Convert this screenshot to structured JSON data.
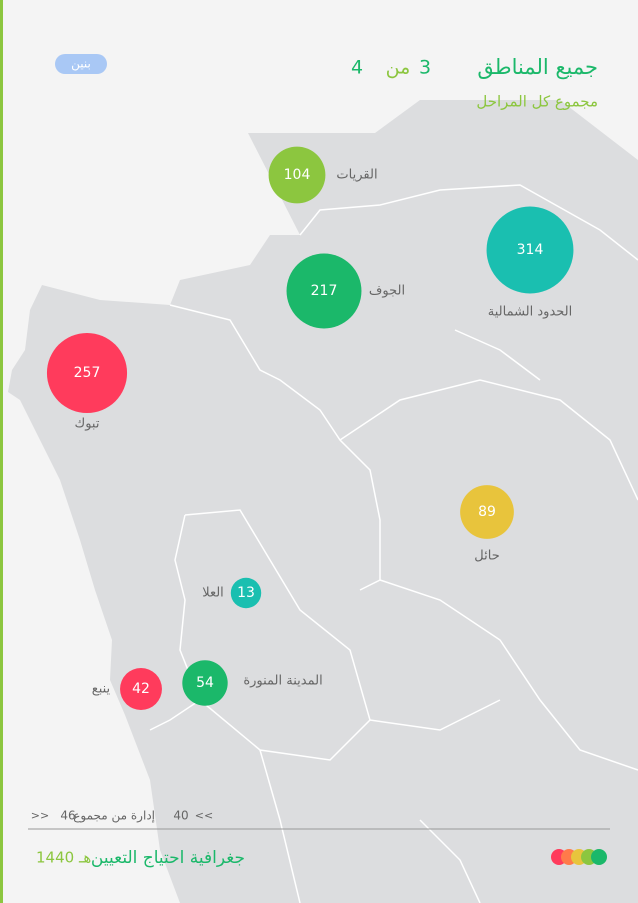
{
  "header": {
    "title": "جميع المناطق",
    "current": "3",
    "of": "من",
    "total": "4",
    "subtitle": "مجموع كل المراحل",
    "tag": "بنين"
  },
  "regions": [
    {
      "name": "القريات",
      "value": 104,
      "color": "#8cc63f"
    },
    {
      "name": "الحدود الشمالية",
      "value": 314,
      "color": "#1abfb0"
    },
    {
      "name": "الجوف",
      "value": 217,
      "color": "#1bb86a"
    },
    {
      "name": "تبوك",
      "value": 257,
      "color": "#ff3b5c"
    },
    {
      "name": "حائل",
      "value": 89,
      "color": "#e8c43c"
    },
    {
      "name": "العلا",
      "value": 13,
      "color": "#1abfb0"
    },
    {
      "name": "المدينة المنورة",
      "value": 54,
      "color": "#1bb86a"
    },
    {
      "name": "ينبع",
      "value": 42,
      "color": "#ff3b5c"
    }
  ],
  "footer": {
    "nav_prev": ">>",
    "count": "46",
    "label": "إدارة من مجموع",
    "page": "40",
    "nav_next": "<<",
    "title": "جغرافية احتياج التعيين",
    "year": "1440 هـ"
  }
}
